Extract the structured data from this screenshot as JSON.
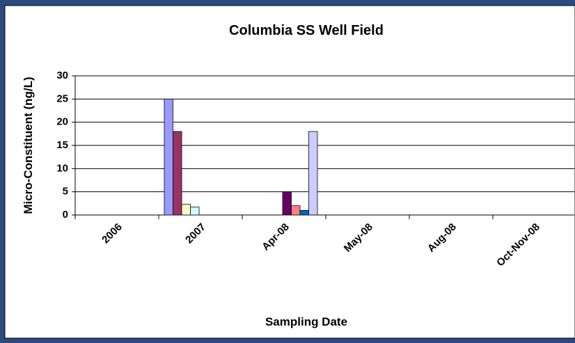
{
  "chart_data": {
    "type": "bar",
    "title": "Columbia SS Well Field",
    "x_label": "Sampling Date",
    "y_label": "Micro-Constituent (ng/L)",
    "categories": [
      "2006",
      "2007",
      "Apr-08",
      "May-08",
      "Aug-08",
      "Oct-Nov-08"
    ],
    "series": [
      {
        "color": "#9999ff",
        "values": [
          null,
          25,
          null,
          null,
          null,
          null
        ]
      },
      {
        "color": "#993366",
        "values": [
          null,
          18,
          null,
          null,
          null,
          null
        ]
      },
      {
        "color": "#ffffcc",
        "values": [
          null,
          2.3,
          null,
          null,
          null,
          null
        ]
      },
      {
        "color": "#ccffff",
        "values": [
          null,
          1.7,
          null,
          null,
          null,
          null
        ]
      },
      {
        "color": "#660066",
        "values": [
          null,
          null,
          5,
          null,
          null,
          null
        ]
      },
      {
        "color": "#ff8080",
        "values": [
          null,
          null,
          2,
          null,
          null,
          null
        ]
      },
      {
        "color": "#0066cc",
        "values": [
          null,
          null,
          1,
          null,
          null,
          null
        ]
      },
      {
        "color": "#ccccff",
        "values": [
          null,
          null,
          18,
          null,
          null,
          null
        ]
      }
    ],
    "ylim": [
      0,
      30
    ],
    "yticks": [
      0,
      5,
      10,
      15,
      20,
      25,
      30
    ],
    "grid": true
  }
}
